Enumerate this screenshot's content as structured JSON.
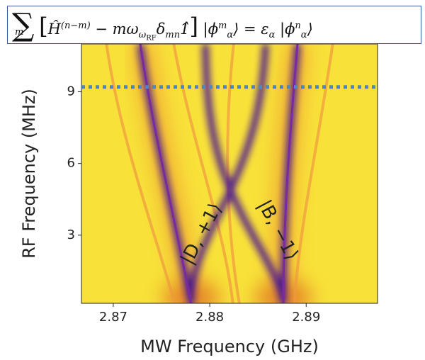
{
  "chart_data": {
    "type": "heatmap",
    "x_label": "MW Frequency (GHz)",
    "y_label": "RF Frequency (MHz)",
    "xlim": [
      2.8667,
      2.8974
    ],
    "ylim": [
      0.15,
      11
    ],
    "xticks": [
      2.87,
      2.88,
      2.89
    ],
    "yticks": [
      3,
      6,
      9
    ],
    "hline": {
      "value": 9.2,
      "color": "#4a86c8"
    },
    "annotations": [
      "|D, +1⟩",
      "|B, −1⟩"
    ],
    "equation": {
      "parts": [
        "∑",
        "m",
        "[",
        "Ĥ",
        "(n−m)",
        " − mω",
        "ω",
        "RF",
        "δ",
        "mn",
        "1̂",
        "]",
        " |ϕ",
        "m",
        "α",
        "⟩ = ε",
        "α",
        " |ϕ",
        "n",
        "α",
        "⟩"
      ]
    }
  }
}
